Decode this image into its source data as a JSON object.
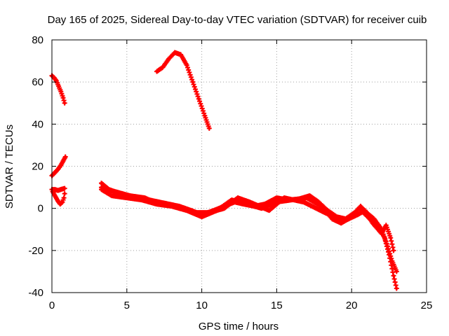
{
  "chart_data": {
    "type": "scatter",
    "title": "Day 165 of 2025, Sidereal Day-to-day VTEC variation (SDTVAR) for receiver cuib",
    "xlabel": "GPS time / hours",
    "ylabel": "SDTVAR / TECUs",
    "xlim": [
      0,
      25
    ],
    "ylim": [
      -40,
      80
    ],
    "xticks": [
      0,
      5,
      10,
      15,
      20,
      25
    ],
    "yticks": [
      -40,
      -20,
      0,
      20,
      40,
      60,
      80
    ],
    "grid": true,
    "marker": "+",
    "color": "#ff0000",
    "series": [
      {
        "name": "arc-high-early",
        "points": [
          [
            0,
            63
          ],
          [
            0.15,
            62
          ],
          [
            0.3,
            60.5
          ],
          [
            0.45,
            58
          ],
          [
            0.6,
            55.5
          ],
          [
            0.75,
            52.5
          ],
          [
            0.85,
            50
          ]
        ]
      },
      {
        "name": "arc-rise-early",
        "points": [
          [
            0,
            15.5
          ],
          [
            0.2,
            17
          ],
          [
            0.4,
            18.5
          ],
          [
            0.6,
            20.5
          ],
          [
            0.75,
            22.5
          ],
          [
            0.9,
            24.5
          ]
        ]
      },
      {
        "name": "arc-mid-early",
        "points": [
          [
            0,
            9
          ],
          [
            0.2,
            9
          ],
          [
            0.4,
            8.5
          ],
          [
            0.6,
            9
          ],
          [
            0.85,
            9.5
          ]
        ]
      },
      {
        "name": "arc-dip-early",
        "points": [
          [
            0.05,
            8
          ],
          [
            0.2,
            6
          ],
          [
            0.4,
            3.5
          ],
          [
            0.55,
            2
          ],
          [
            0.7,
            3
          ],
          [
            0.8,
            5
          ],
          [
            0.85,
            7
          ]
        ]
      },
      {
        "name": "arc-peak",
        "points": [
          [
            7,
            65
          ],
          [
            7.4,
            67
          ],
          [
            7.8,
            71
          ],
          [
            8.2,
            74
          ],
          [
            8.6,
            73
          ],
          [
            9,
            68
          ],
          [
            9.4,
            60
          ],
          [
            9.8,
            52
          ],
          [
            10.2,
            44
          ],
          [
            10.5,
            38
          ]
        ]
      },
      {
        "name": "arc-main-a",
        "points": [
          [
            3.3,
            12
          ],
          [
            3.8,
            9
          ],
          [
            4.5,
            7
          ],
          [
            5.5,
            5.5
          ],
          [
            6.5,
            4
          ],
          [
            7.5,
            2.5
          ],
          [
            8.5,
            1
          ],
          [
            9.3,
            -1
          ],
          [
            10,
            -3
          ],
          [
            10.8,
            -1
          ],
          [
            11.5,
            1
          ],
          [
            12.2,
            3
          ],
          [
            12.8,
            2
          ],
          [
            13.5,
            1
          ],
          [
            14.2,
            2
          ],
          [
            15,
            5
          ],
          [
            15.8,
            4
          ],
          [
            16.5,
            4.5
          ],
          [
            17.2,
            6
          ],
          [
            17.8,
            3
          ],
          [
            18.4,
            -1
          ],
          [
            19,
            -4
          ],
          [
            19.6,
            -5
          ],
          [
            20.2,
            -2
          ],
          [
            20.6,
            1
          ],
          [
            21,
            -2
          ],
          [
            21.5,
            -5
          ],
          [
            22,
            -10
          ],
          [
            22.4,
            -18
          ],
          [
            22.7,
            -25
          ],
          [
            23,
            -30
          ]
        ]
      },
      {
        "name": "arc-main-b",
        "points": [
          [
            3.3,
            9
          ],
          [
            4,
            6
          ],
          [
            5,
            5
          ],
          [
            6,
            4
          ],
          [
            7,
            2
          ],
          [
            8,
            1
          ],
          [
            9,
            -1
          ],
          [
            10,
            -4
          ],
          [
            11,
            -1
          ],
          [
            12,
            4
          ],
          [
            13,
            2
          ],
          [
            14,
            0
          ],
          [
            15,
            3
          ],
          [
            16,
            4
          ],
          [
            17,
            5
          ],
          [
            18,
            1
          ],
          [
            18.7,
            -5
          ],
          [
            19.3,
            -7
          ],
          [
            20,
            -4
          ],
          [
            20.5,
            0
          ],
          [
            21.2,
            -5
          ],
          [
            21.8,
            -8
          ],
          [
            22.2,
            -14
          ],
          [
            22.5,
            -22
          ],
          [
            22.8,
            -32
          ],
          [
            23,
            -38
          ]
        ]
      },
      {
        "name": "arc-main-c",
        "points": [
          [
            3.3,
            10
          ],
          [
            4.2,
            8
          ],
          [
            5.2,
            6
          ],
          [
            6.2,
            5
          ],
          [
            6.8,
            3
          ],
          [
            7.8,
            2
          ],
          [
            8.8,
            0
          ],
          [
            9.6,
            -2
          ],
          [
            10.5,
            -2
          ],
          [
            11.5,
            0
          ],
          [
            12.4,
            5
          ],
          [
            13.2,
            3
          ],
          [
            14.5,
            -1
          ],
          [
            15.5,
            5
          ],
          [
            16.8,
            3
          ],
          [
            18.2,
            -2
          ],
          [
            19.5,
            -6
          ],
          [
            20.4,
            -3
          ],
          [
            20.9,
            -1
          ],
          [
            21.4,
            -7
          ],
          [
            22,
            -12
          ],
          [
            22.3,
            -8
          ],
          [
            22.6,
            -14
          ],
          [
            22.8,
            -20
          ]
        ]
      }
    ]
  }
}
